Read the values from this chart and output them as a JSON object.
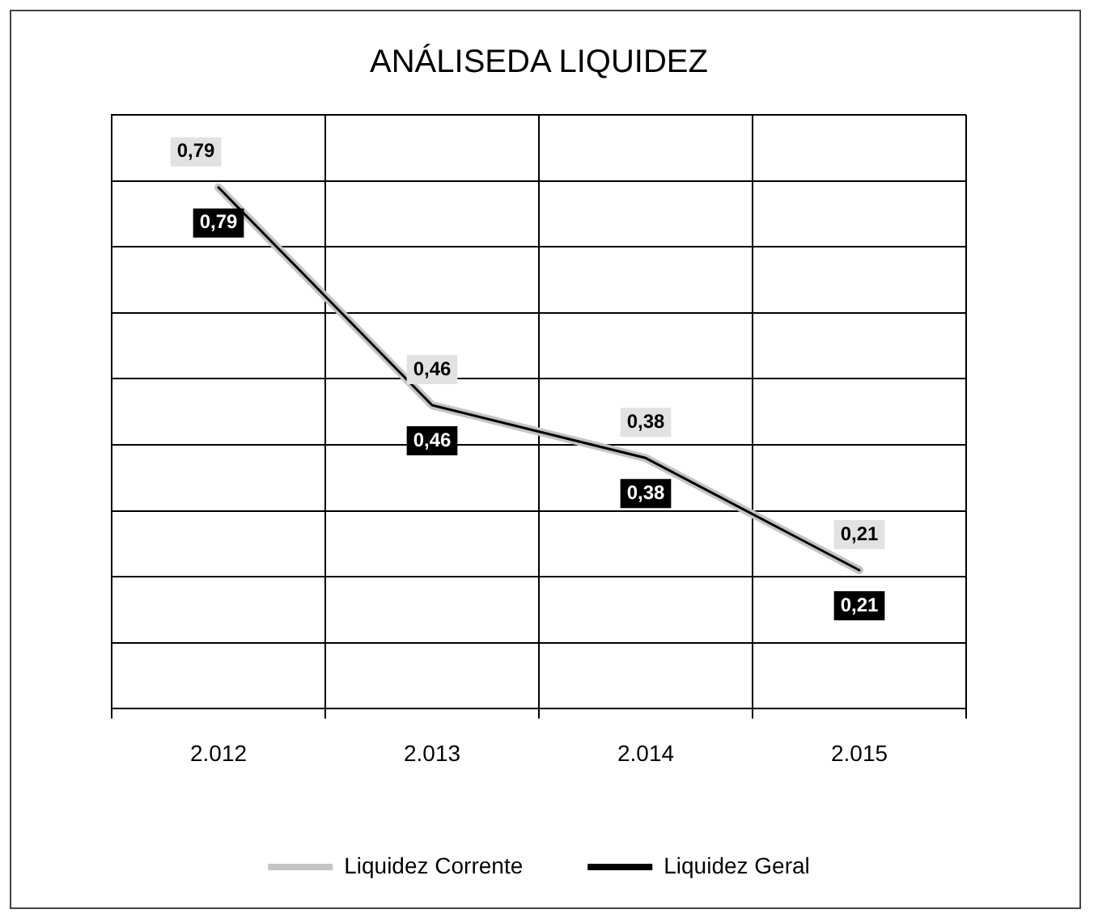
{
  "chart_data": {
    "type": "line",
    "title": "ANÁLISEDA LIQUIDEZ",
    "categories": [
      "2.012",
      "2.013",
      "2.014",
      "2.015"
    ],
    "series": [
      {
        "name": "Liquidez Corrente",
        "color": "#c4c4c4",
        "values": [
          0.79,
          0.46,
          0.38,
          0.21
        ],
        "value_labels": [
          "0,79",
          "0,46",
          "0,38",
          "0,21"
        ]
      },
      {
        "name": "Liquidez Geral",
        "color": "#000000",
        "values": [
          0.79,
          0.46,
          0.38,
          0.21
        ],
        "value_labels": [
          "0,79",
          "0,46",
          "0,38",
          "0,21"
        ]
      }
    ],
    "tick_labels": "x",
    "grid": true,
    "legend": "bottom",
    "marker": "none",
    "line_style": "solid"
  }
}
